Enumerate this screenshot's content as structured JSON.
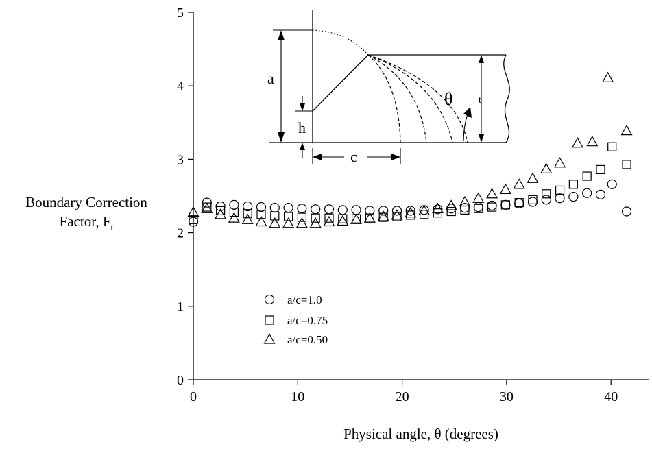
{
  "chart_data": {
    "type": "scatter",
    "title": "",
    "xlabel": "Physical angle, θ (degrees)",
    "ylabel_line1": "Boundary Correction",
    "ylabel_line2": "Factor, F",
    "ylabel_subscript": "t",
    "xlim": [
      0,
      45
    ],
    "ylim": [
      0,
      5
    ],
    "x_ticks": [
      0,
      10,
      20,
      30,
      40
    ],
    "y_ticks": [
      0,
      1,
      2,
      3,
      4,
      5
    ],
    "legend_position": "lower-left",
    "series": [
      {
        "name": "a/c=1.0",
        "marker": "circle",
        "points": [
          [
            0,
            2.15
          ],
          [
            1.3,
            2.41
          ],
          [
            2.6,
            2.36
          ],
          [
            3.9,
            2.38
          ],
          [
            5.2,
            2.36
          ],
          [
            6.5,
            2.35
          ],
          [
            7.8,
            2.34
          ],
          [
            9.1,
            2.34
          ],
          [
            10.4,
            2.33
          ],
          [
            11.7,
            2.32
          ],
          [
            13.0,
            2.32
          ],
          [
            14.3,
            2.31
          ],
          [
            15.6,
            2.31
          ],
          [
            16.9,
            2.3
          ],
          [
            18.2,
            2.3
          ],
          [
            19.5,
            2.3
          ],
          [
            20.8,
            2.3
          ],
          [
            22.1,
            2.31
          ],
          [
            23.4,
            2.32
          ],
          [
            24.7,
            2.33
          ],
          [
            26.0,
            2.34
          ],
          [
            27.3,
            2.35
          ],
          [
            28.6,
            2.37
          ],
          [
            29.9,
            2.38
          ],
          [
            31.2,
            2.4
          ],
          [
            32.5,
            2.42
          ],
          [
            33.8,
            2.45
          ],
          [
            35.1,
            2.47
          ],
          [
            36.4,
            2.49
          ],
          [
            37.7,
            2.54
          ],
          [
            39.0,
            2.52
          ],
          [
            40.1,
            2.66
          ],
          [
            41.5,
            2.29
          ]
        ]
      },
      {
        "name": "a/c=0.75",
        "marker": "square",
        "points": [
          [
            0,
            2.18
          ],
          [
            1.3,
            2.35
          ],
          [
            2.6,
            2.3
          ],
          [
            3.9,
            2.28
          ],
          [
            5.2,
            2.26
          ],
          [
            6.5,
            2.25
          ],
          [
            7.8,
            2.23
          ],
          [
            9.1,
            2.22
          ],
          [
            10.4,
            2.21
          ],
          [
            11.7,
            2.2
          ],
          [
            13.0,
            2.2
          ],
          [
            14.3,
            2.19
          ],
          [
            15.6,
            2.19
          ],
          [
            16.9,
            2.2
          ],
          [
            18.2,
            2.21
          ],
          [
            19.5,
            2.22
          ],
          [
            20.8,
            2.24
          ],
          [
            22.1,
            2.25
          ],
          [
            23.4,
            2.27
          ],
          [
            24.7,
            2.29
          ],
          [
            26.0,
            2.31
          ],
          [
            27.3,
            2.33
          ],
          [
            28.6,
            2.35
          ],
          [
            29.9,
            2.38
          ],
          [
            31.2,
            2.41
          ],
          [
            32.5,
            2.45
          ],
          [
            33.8,
            2.53
          ],
          [
            35.1,
            2.58
          ],
          [
            36.4,
            2.66
          ],
          [
            37.7,
            2.77
          ],
          [
            39.0,
            2.86
          ],
          [
            40.1,
            3.17
          ],
          [
            41.5,
            2.93
          ]
        ]
      },
      {
        "name": "a/c=0.50",
        "marker": "triangle",
        "points": [
          [
            0,
            2.28
          ],
          [
            1.3,
            2.33
          ],
          [
            2.6,
            2.25
          ],
          [
            3.9,
            2.2
          ],
          [
            5.2,
            2.18
          ],
          [
            6.5,
            2.15
          ],
          [
            7.8,
            2.13
          ],
          [
            9.1,
            2.13
          ],
          [
            10.4,
            2.13
          ],
          [
            11.7,
            2.13
          ],
          [
            13.0,
            2.15
          ],
          [
            14.3,
            2.16
          ],
          [
            15.6,
            2.18
          ],
          [
            16.9,
            2.2
          ],
          [
            18.2,
            2.22
          ],
          [
            19.5,
            2.24
          ],
          [
            20.8,
            2.27
          ],
          [
            22.1,
            2.3
          ],
          [
            23.4,
            2.33
          ],
          [
            24.7,
            2.37
          ],
          [
            26.0,
            2.42
          ],
          [
            27.3,
            2.47
          ],
          [
            28.6,
            2.53
          ],
          [
            29.9,
            2.59
          ],
          [
            31.2,
            2.66
          ],
          [
            32.5,
            2.74
          ],
          [
            33.8,
            2.87
          ],
          [
            35.1,
            2.95
          ],
          [
            36.8,
            3.22
          ],
          [
            38.2,
            3.24
          ],
          [
            39.7,
            4.11
          ],
          [
            41.5,
            3.39
          ]
        ]
      }
    ]
  },
  "inset": {
    "label_a": "a",
    "label_h": "h",
    "label_c": "c",
    "label_t": "t",
    "label_theta": "θ"
  }
}
